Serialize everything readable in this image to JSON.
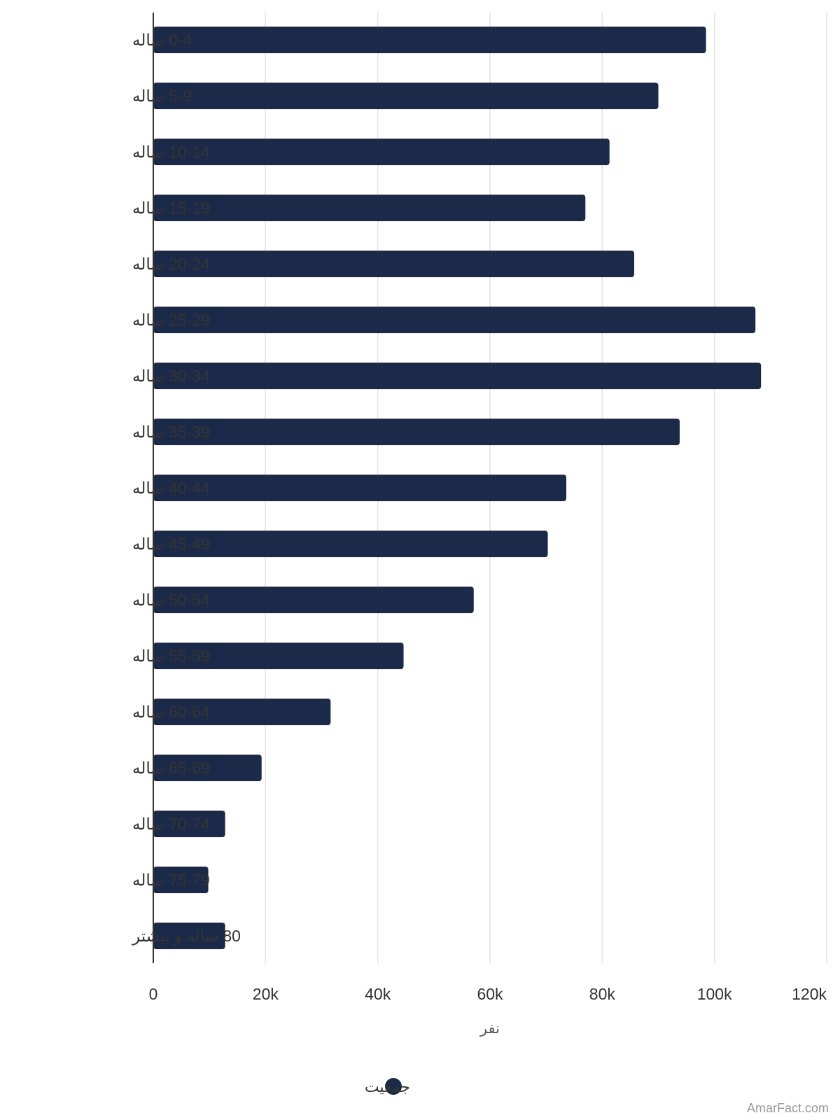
{
  "chart_data": {
    "type": "bar",
    "orientation": "horizontal",
    "categories": [
      "0-4 ساله",
      "5-9 ساله",
      "10-14 ساله",
      "15-19 ساله",
      "20-24 ساله",
      "25-29 ساله",
      "30-34 ساله",
      "35-39 ساله",
      "40-44 ساله",
      "45-49 ساله",
      "50-54 ساله",
      "55-59 ساله",
      "60-64 ساله",
      "65-69 ساله",
      "70-74 ساله",
      "75-79 ساله",
      "80 ساله و بیشتر"
    ],
    "series": [
      {
        "name": "جمعیت",
        "color": "#1c2a4a",
        "values": [
          98500,
          90000,
          81300,
          77000,
          85700,
          107300,
          108300,
          93800,
          73600,
          70300,
          57100,
          44600,
          31600,
          19300,
          12800,
          9800,
          12800
        ]
      }
    ],
    "xlabel": "نفر",
    "xlim": [
      0,
      120000
    ],
    "xticks": [
      0,
      20000,
      40000,
      60000,
      80000,
      100000,
      120000
    ],
    "xtick_labels": [
      "0",
      "20k",
      "40k",
      "60k",
      "80k",
      "100k",
      "120k"
    ],
    "grid": "vertical",
    "legend_position": "bottom-center"
  },
  "watermark": "AmarFact.com"
}
